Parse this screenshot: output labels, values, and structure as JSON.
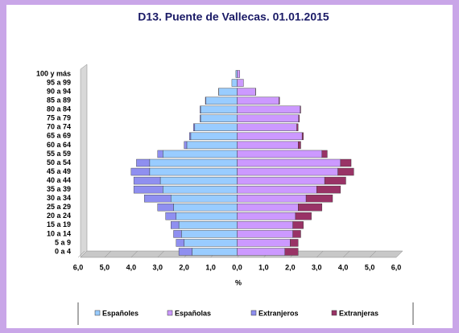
{
  "chart_data": {
    "type": "bar",
    "orientation": "horizontal",
    "stacked": true,
    "title": "D13. Puente de Vallecas. 01.01.2015",
    "x_label": "%",
    "categories": [
      "0 a 4",
      "5 a 9",
      "10 a 14",
      "15 a 19",
      "20 a 24",
      "25 a 29",
      "30 a 34",
      "35 a 39",
      "40 a 44",
      "45 a 49",
      "50 a 54",
      "55 a 59",
      "60 a 64",
      "65 a 69",
      "70 a 74",
      "75 a 79",
      "80 a 84",
      "85 a 89",
      "90 a 94",
      "95 a 99",
      "100 y más"
    ],
    "series": [
      {
        "name": "Españoles",
        "color": "#99ccff",
        "values": [
          -1.7,
          -2.0,
          -2.1,
          -2.2,
          -2.3,
          -2.4,
          -2.5,
          -2.8,
          -2.9,
          -3.3,
          -3.3,
          -2.8,
          -1.9,
          -1.75,
          -1.6,
          -1.38,
          -1.38,
          -1.18,
          -0.69,
          -0.2,
          -0.05
        ]
      },
      {
        "name": "Españolas",
        "color": "#cc99ff",
        "values": [
          1.8,
          2.0,
          2.1,
          2.1,
          2.2,
          2.3,
          2.6,
          3.0,
          3.3,
          3.8,
          3.9,
          3.2,
          2.3,
          2.45,
          2.25,
          2.32,
          2.38,
          1.58,
          0.69,
          0.24,
          0.1
        ]
      },
      {
        "name": "Extranjeros",
        "color": "#8f8ff0",
        "values": [
          -0.5,
          -0.3,
          -0.3,
          -0.3,
          -0.4,
          -0.6,
          -1.0,
          -1.1,
          -1.0,
          -0.7,
          -0.5,
          -0.2,
          -0.1,
          -0.05,
          -0.05,
          -0.02,
          -0.02,
          -0.02,
          -0.01,
          0,
          0
        ]
      },
      {
        "name": "Extranjeras",
        "color": "#993366",
        "values": [
          0.5,
          0.3,
          0.3,
          0.4,
          0.6,
          0.9,
          1.0,
          0.9,
          0.8,
          0.6,
          0.4,
          0.2,
          0.1,
          0.05,
          0.05,
          0.03,
          0.02,
          0.02,
          0.01,
          0,
          0
        ]
      }
    ],
    "xlim": [
      -6,
      6
    ],
    "xticks": [
      {
        "value": -6,
        "label": "6,0"
      },
      {
        "value": -5,
        "label": "5,0"
      },
      {
        "value": -4,
        "label": "4,0"
      },
      {
        "value": -3,
        "label": "3,0"
      },
      {
        "value": -2,
        "label": "2,0"
      },
      {
        "value": -1,
        "label": "1,0"
      },
      {
        "value": 0,
        "label": "0,0"
      },
      {
        "value": 1,
        "label": "1,0"
      },
      {
        "value": 2,
        "label": "2,0"
      },
      {
        "value": 3,
        "label": "3,0"
      },
      {
        "value": 4,
        "label": "4,0"
      },
      {
        "value": 5,
        "label": "5,0"
      },
      {
        "value": 6,
        "label": "6,0"
      }
    ],
    "legend": "bottom"
  }
}
